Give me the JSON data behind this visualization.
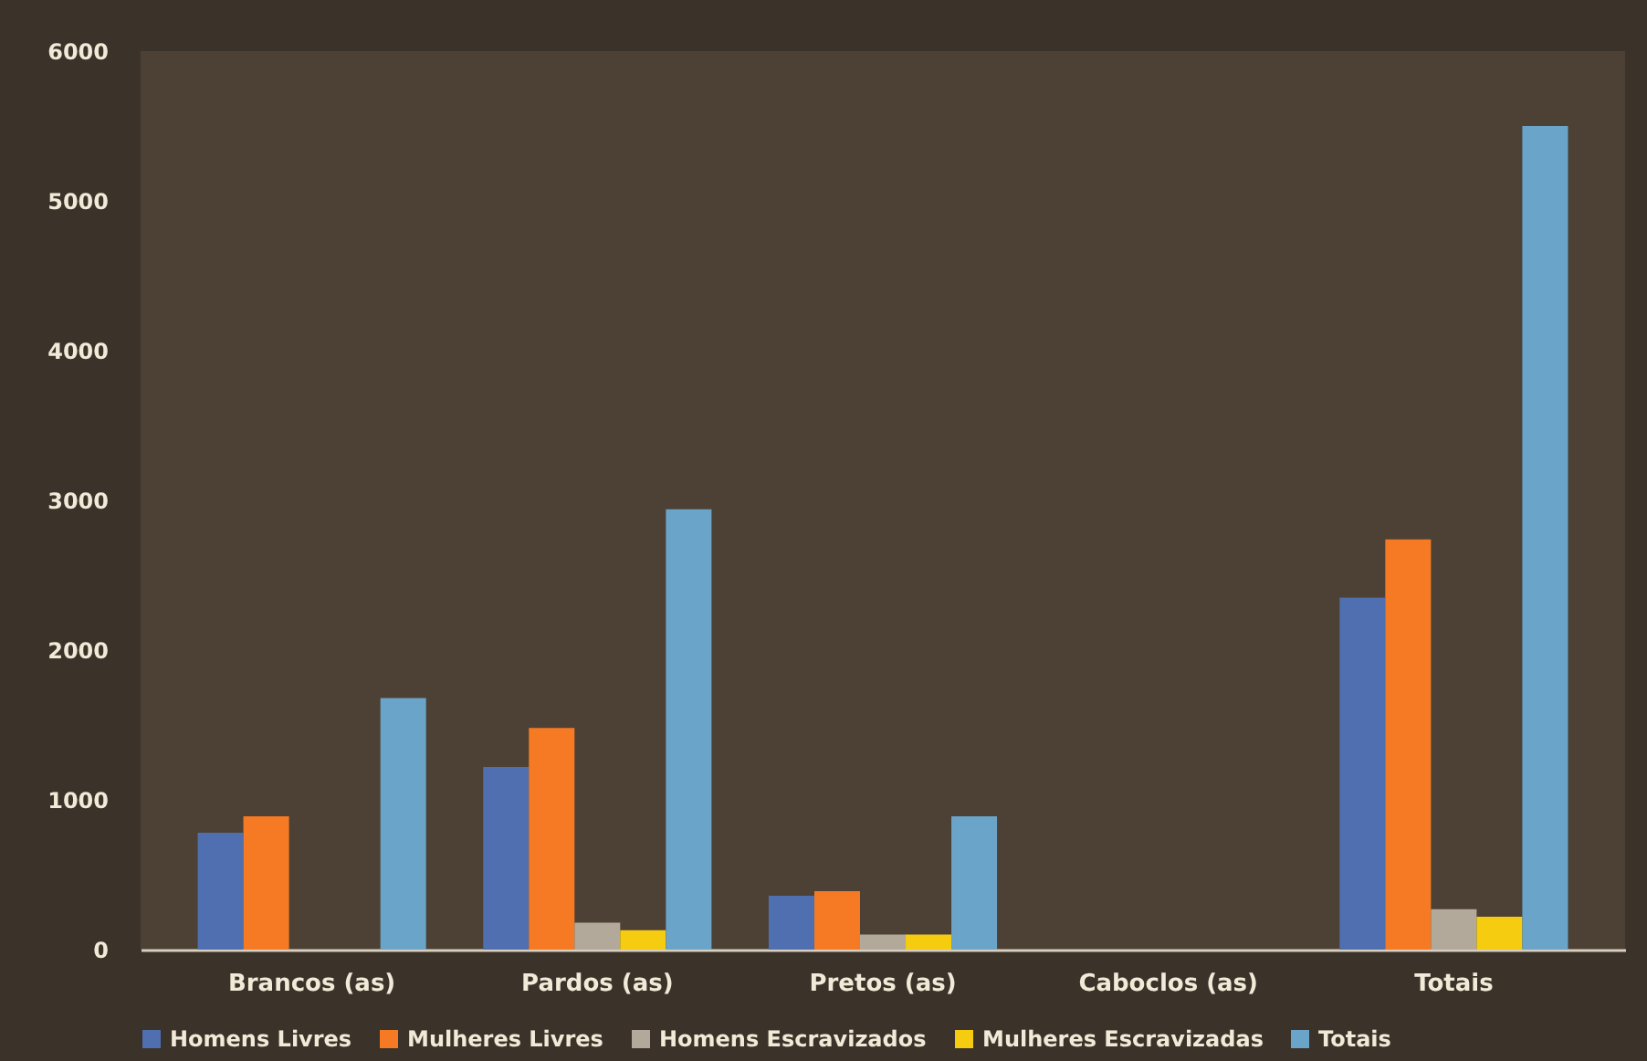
{
  "chart_data": {
    "type": "bar",
    "categories": [
      "Brancos (as)",
      "Pardos (as)",
      "Pretos (as)",
      "Caboclos (as)",
      "Totais"
    ],
    "series": [
      {
        "name": "Homens Livres",
        "color": "#4f6fb0",
        "values": [
          780,
          1220,
          360,
          0,
          2350
        ]
      },
      {
        "name": "Mulheres Livres",
        "color": "#f57a23",
        "values": [
          890,
          1480,
          390,
          0,
          2740
        ]
      },
      {
        "name": "Homens Escravizados",
        "color": "#b2a99b",
        "values": [
          0,
          180,
          100,
          0,
          270
        ]
      },
      {
        "name": "Mulheres Escravizadas",
        "color": "#f5cc10",
        "values": [
          0,
          130,
          100,
          0,
          220
        ]
      },
      {
        "name": "Totais",
        "color": "#6aa4c8",
        "values": [
          1680,
          2940,
          890,
          0,
          5500
        ]
      }
    ],
    "ylim": [
      0,
      6000
    ],
    "yticks": [
      0,
      1000,
      2000,
      3000,
      4000,
      5000,
      6000
    ],
    "grid": false,
    "legend": "bottom"
  }
}
